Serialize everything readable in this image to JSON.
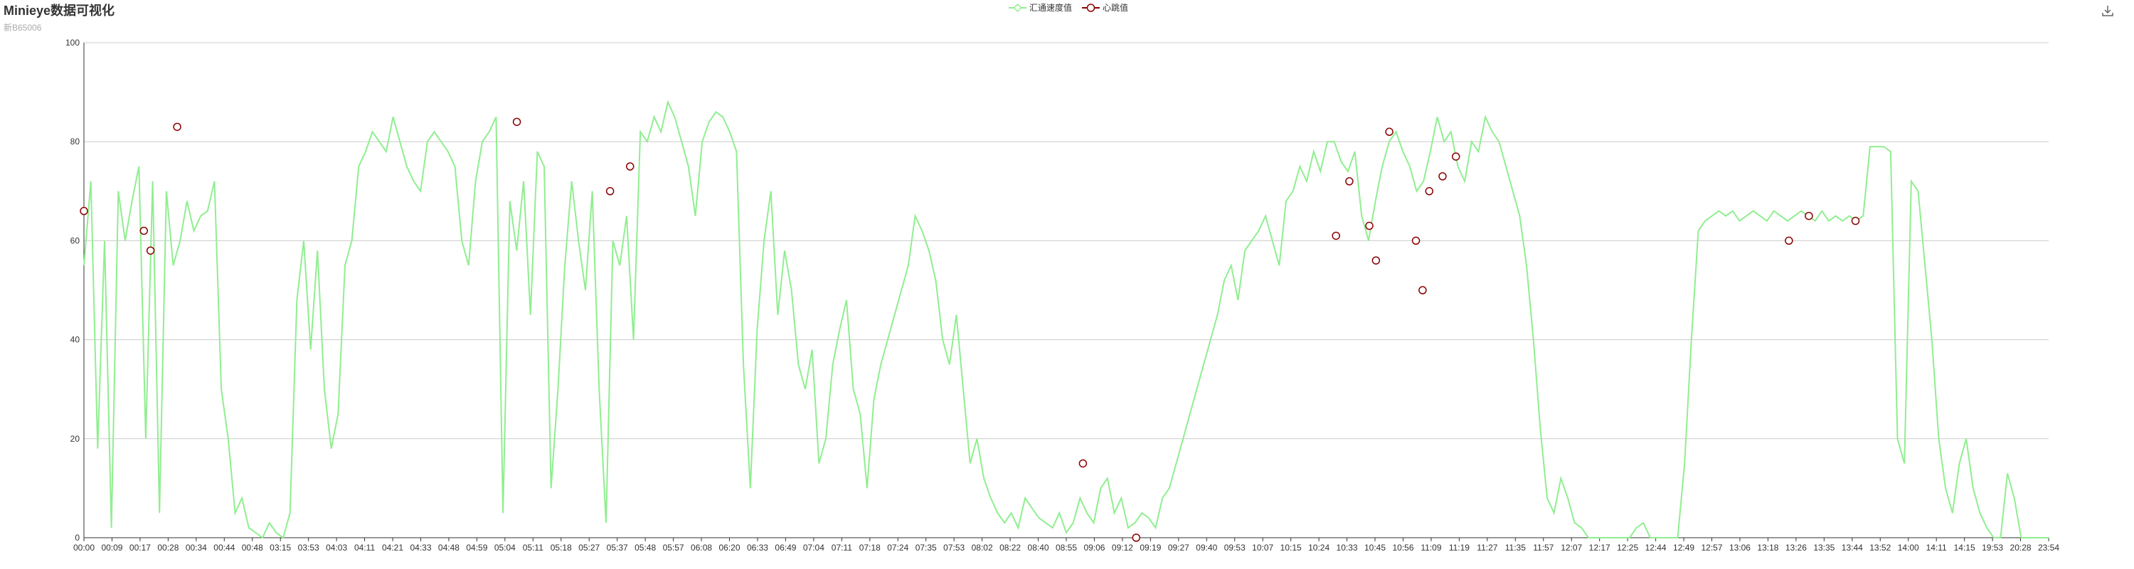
{
  "title": "Minieye数据可视化",
  "subtitle": "新B65006",
  "legend": [
    {
      "name": "汇通速度值",
      "color": "#90ee90",
      "symbol": "diamond"
    },
    {
      "name": "心跳值",
      "color": "#8b0000",
      "symbol": "circle"
    }
  ],
  "toolbox": {
    "icon": "download-icon"
  },
  "chart_data": {
    "type": "line",
    "ylim": [
      0,
      100
    ],
    "y_ticks": [
      0,
      20,
      40,
      60,
      80,
      100
    ],
    "grid": true,
    "legend_position": "top-center",
    "x_labels": [
      "00:00",
      "00:09",
      "00:17",
      "00:28",
      "00:34",
      "00:44",
      "00:48",
      "03:15",
      "03:53",
      "04:03",
      "04:11",
      "04:21",
      "04:33",
      "04:48",
      "04:59",
      "05:04",
      "05:11",
      "05:18",
      "05:27",
      "05:37",
      "05:48",
      "05:57",
      "06:08",
      "06:20",
      "06:33",
      "06:49",
      "07:04",
      "07:11",
      "07:18",
      "07:24",
      "07:35",
      "07:53",
      "08:02",
      "08:22",
      "08:40",
      "08:55",
      "09:06",
      "09:12",
      "09:19",
      "09:27",
      "09:40",
      "09:53",
      "10:07",
      "10:15",
      "10:24",
      "10:33",
      "10:45",
      "10:56",
      "11:09",
      "11:19",
      "11:27",
      "11:35",
      "11:57",
      "12:07",
      "12:17",
      "12:25",
      "12:44",
      "12:49",
      "12:57",
      "13:06",
      "13:18",
      "13:26",
      "13:35",
      "13:44",
      "13:52",
      "14:00",
      "14:11",
      "14:15",
      "19:53",
      "20:28",
      "23:54"
    ],
    "series": [
      {
        "name": "汇通速度值",
        "color": "#90ee90",
        "values": [
          55,
          72,
          18,
          60,
          2,
          70,
          60,
          68,
          75,
          20,
          72,
          5,
          70,
          55,
          60,
          68,
          62,
          65,
          66,
          72,
          30,
          20,
          5,
          8,
          2,
          1,
          0,
          3,
          1,
          0,
          5,
          48,
          60,
          38,
          58,
          30,
          18,
          25,
          55,
          60,
          75,
          78,
          82,
          80,
          78,
          85,
          80,
          75,
          72,
          70,
          80,
          82,
          80,
          78,
          75,
          60,
          55,
          72,
          80,
          82,
          85,
          5,
          68,
          58,
          72,
          45,
          78,
          75,
          10,
          30,
          55,
          72,
          60,
          50,
          70,
          30,
          3,
          60,
          55,
          65,
          40,
          82,
          80,
          85,
          82,
          88,
          85,
          80,
          75,
          65,
          80,
          84,
          86,
          85,
          82,
          78,
          35,
          10,
          42,
          60,
          70,
          45,
          58,
          50,
          35,
          30,
          38,
          15,
          20,
          35,
          42,
          48,
          30,
          25,
          10,
          28,
          35,
          40,
          45,
          50,
          55,
          65,
          62,
          58,
          52,
          40,
          35,
          45,
          30,
          15,
          20,
          12,
          8,
          5,
          3,
          5,
          2,
          8,
          6,
          4,
          3,
          2,
          5,
          1,
          3,
          8,
          5,
          3,
          10,
          12,
          5,
          8,
          2,
          3,
          5,
          4,
          2,
          8,
          10,
          15,
          20,
          25,
          30,
          35,
          40,
          45,
          52,
          55,
          48,
          58,
          60,
          62,
          65,
          60,
          55,
          68,
          70,
          75,
          72,
          78,
          74,
          80,
          80,
          76,
          74,
          78,
          65,
          60,
          68,
          75,
          80,
          82,
          78,
          75,
          70,
          72,
          78,
          85,
          80,
          82,
          75,
          72,
          80,
          78,
          85,
          82,
          80,
          75,
          70,
          65,
          55,
          40,
          22,
          8,
          5,
          12,
          8,
          3,
          2,
          0,
          0,
          0,
          0,
          0,
          0,
          0,
          2,
          3,
          0,
          0,
          0,
          0,
          0,
          15,
          40,
          62,
          64,
          65,
          66,
          65,
          66,
          64,
          65,
          66,
          65,
          64,
          66,
          65,
          64,
          65,
          66,
          65,
          64,
          66,
          64,
          65,
          64,
          65,
          64,
          65,
          79,
          79,
          79,
          78,
          20,
          15,
          72,
          70,
          55,
          40,
          20,
          10,
          5,
          15,
          20,
          10,
          5,
          2,
          0,
          0,
          13,
          8,
          0,
          0,
          0,
          0,
          0
        ]
      },
      {
        "name": "心跳值",
        "color": "#8b0000",
        "values": [
          66,
          null,
          null,
          null,
          null,
          null,
          null,
          null,
          null,
          62,
          58,
          null,
          null,
          null,
          83,
          null,
          null,
          null,
          null,
          null,
          null,
          null,
          null,
          null,
          null,
          null,
          null,
          null,
          null,
          null,
          null,
          null,
          null,
          null,
          null,
          null,
          null,
          null,
          null,
          null,
          null,
          null,
          null,
          null,
          null,
          null,
          null,
          null,
          null,
          null,
          null,
          null,
          null,
          null,
          null,
          null,
          null,
          null,
          null,
          null,
          null,
          null,
          null,
          null,
          null,
          84,
          null,
          null,
          null,
          null,
          null,
          null,
          null,
          null,
          null,
          null,
          null,
          null,
          null,
          70,
          null,
          null,
          75,
          null,
          null,
          null,
          null,
          null,
          null,
          null,
          null,
          null,
          null,
          null,
          null,
          null,
          null,
          null,
          null,
          null,
          null,
          null,
          null,
          null,
          null,
          null,
          null,
          null,
          null,
          null,
          null,
          null,
          null,
          null,
          null,
          null,
          null,
          null,
          null,
          null,
          null,
          null,
          null,
          null,
          null,
          null,
          null,
          null,
          null,
          null,
          null,
          null,
          null,
          null,
          null,
          null,
          null,
          null,
          null,
          null,
          null,
          null,
          null,
          null,
          null,
          null,
          null,
          null,
          null,
          null,
          15,
          null,
          null,
          null,
          null,
          null,
          null,
          null,
          0,
          null,
          null,
          null,
          null,
          null,
          null,
          null,
          null,
          null,
          null,
          null,
          null,
          null,
          null,
          null,
          null,
          null,
          null,
          null,
          null,
          null,
          null,
          null,
          null,
          null,
          null,
          null,
          null,
          null,
          61,
          null,
          72,
          null,
          null,
          63,
          56,
          null,
          82,
          null,
          null,
          null,
          60,
          50,
          70,
          null,
          73,
          null,
          77,
          null,
          null,
          null,
          null,
          null,
          null,
          null,
          null,
          null,
          null,
          null,
          null,
          null,
          null,
          null,
          null,
          null,
          null,
          null,
          null,
          null,
          null,
          null,
          null,
          null,
          null,
          null,
          null,
          null,
          null,
          null,
          null,
          null,
          null,
          null,
          null,
          null,
          null,
          null,
          null,
          null,
          null,
          null,
          null,
          null,
          null,
          null,
          null,
          null,
          60,
          null,
          null,
          65,
          null,
          null,
          null,
          null,
          null,
          null,
          64,
          null,
          null,
          null,
          null,
          null,
          null,
          null,
          null,
          null,
          null,
          null,
          null,
          null,
          null,
          null,
          null,
          null,
          null,
          null,
          null,
          null,
          null,
          null,
          null,
          null,
          null,
          null,
          null,
          null
        ]
      }
    ]
  }
}
